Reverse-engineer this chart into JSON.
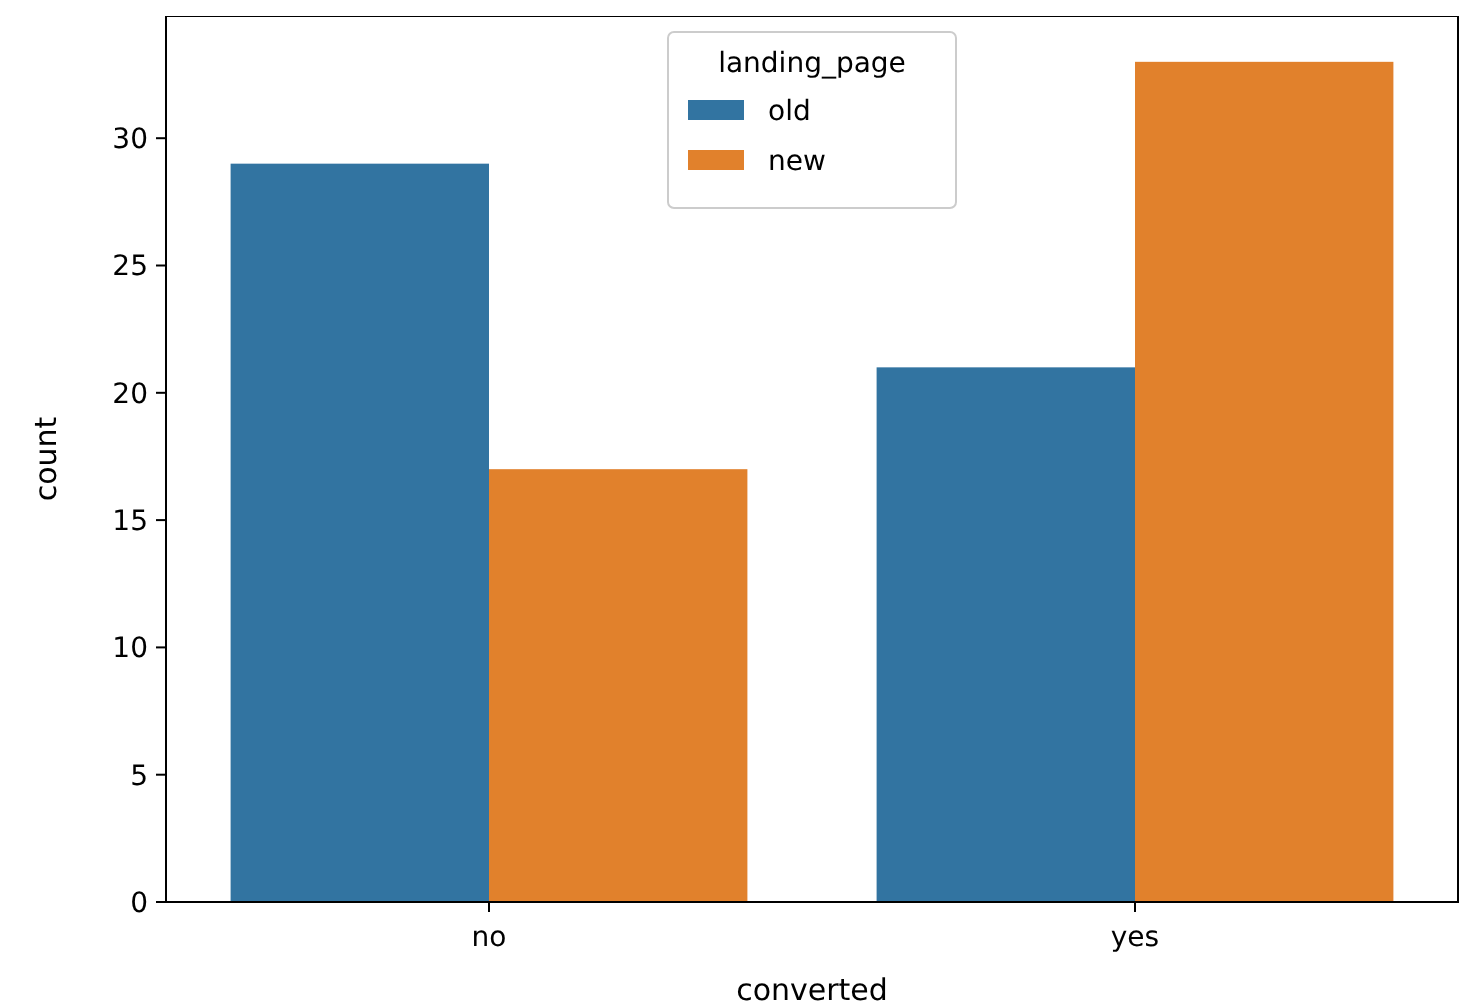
{
  "chart_data": {
    "type": "bar",
    "xlabel": "converted",
    "ylabel": "count",
    "legend_title": "landing_page",
    "legend": "top",
    "categories": [
      "no",
      "yes"
    ],
    "series": [
      {
        "name": "old",
        "color": "#3274a1",
        "values": [
          29,
          21
        ]
      },
      {
        "name": "new",
        "color": "#e1812c",
        "values": [
          17,
          33
        ]
      }
    ],
    "ylim": [
      0,
      34.8
    ],
    "yticks": [
      0,
      5,
      10,
      15,
      20,
      25,
      30
    ],
    "grid": false
  }
}
